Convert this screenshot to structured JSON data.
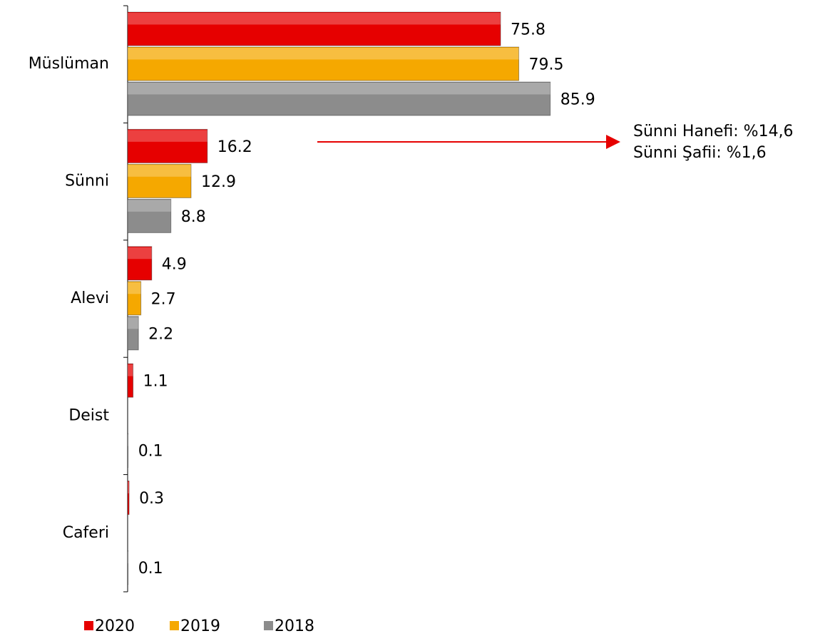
{
  "chart_data": {
    "type": "bar",
    "orientation": "horizontal",
    "categories": [
      "Müslüman",
      "Sünni",
      "Alevi",
      "Deist",
      "Caferi"
    ],
    "series": [
      {
        "name": "2020",
        "color": "#e60000",
        "values": [
          75.8,
          16.2,
          4.9,
          1.1,
          0.3
        ]
      },
      {
        "name": "2019",
        "color": "#f5a800",
        "values": [
          79.5,
          12.9,
          2.7,
          null,
          null
        ]
      },
      {
        "name": "2018",
        "color": "#8c8c8c",
        "values": [
          85.9,
          8.8,
          2.2,
          0.1,
          0.1
        ]
      }
    ],
    "annotations": [
      "Sünni Hanefi: %14,6",
      "Sünni Şafii: %1,6"
    ],
    "legend": "bottom"
  }
}
